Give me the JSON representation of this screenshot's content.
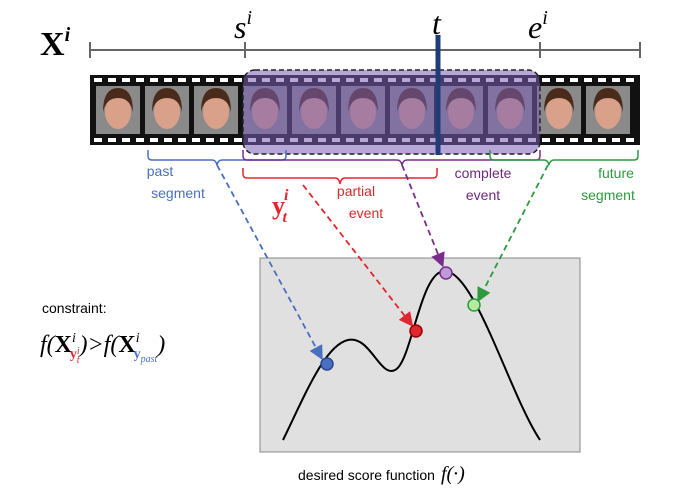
{
  "timeline": {
    "sequence": {
      "base": "X",
      "sup": "i"
    },
    "start": {
      "base": "s",
      "sup": "i"
    },
    "current": {
      "base": "t"
    },
    "end": {
      "base": "e",
      "sup": "i"
    }
  },
  "segments": {
    "past": [
      "past",
      "segment"
    ],
    "partial": {
      "symbol": {
        "base": "y",
        "sub": "t",
        "sup": "i"
      },
      "label": [
        "partial",
        "event"
      ]
    },
    "complete": [
      "complete",
      "event"
    ],
    "future": [
      "future",
      "segment"
    ]
  },
  "constraint": {
    "label": "constraint:",
    "parts": [
      "f(",
      "X",
      "i",
      "y",
      "t",
      "i",
      ")",
      ">",
      "f(",
      "X",
      "i",
      "y",
      "past",
      ")"
    ]
  },
  "caption": {
    "text": "desired score function",
    "math": "f(·)"
  }
}
